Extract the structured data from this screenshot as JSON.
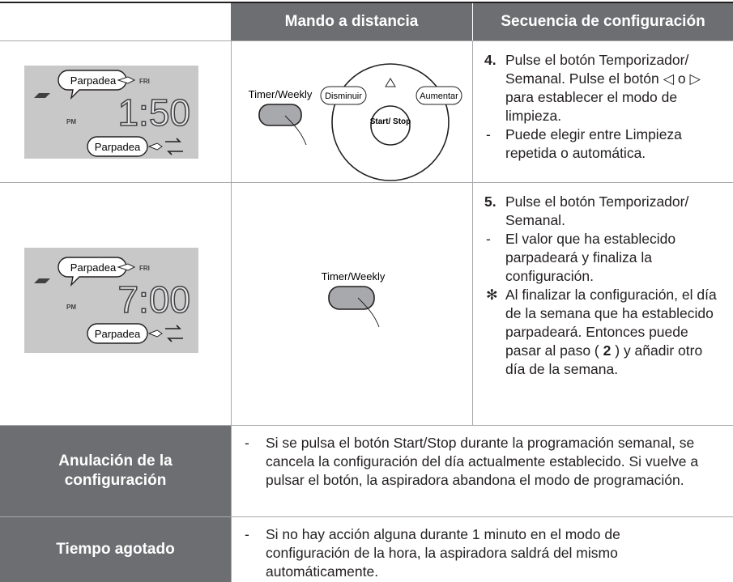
{
  "table": {
    "header": {
      "remote": "Mando a distancia",
      "sequence": "Secuencia de configuración"
    },
    "steps": [
      {
        "display": {
          "blink_top": "Parpadea",
          "day": "FRI",
          "meridiem": "PM",
          "time": "1:50",
          "blink_bottom": "Parpadea"
        },
        "remote": {
          "timer_button": "Timer/Weekly",
          "decrease": "Disminuir",
          "increase": "Aumentar",
          "start_stop": "Start/ Stop"
        },
        "instructions": [
          {
            "marker": "4.",
            "text": "Pulse el botón Temporizador/ Semanal. Pulse el botón ◁ o ▷ para establecer el modo de limpieza."
          },
          {
            "marker": "-",
            "text": "Puede elegir entre Limpieza repetida o automática."
          }
        ]
      },
      {
        "display": {
          "blink_top": "Parpadea",
          "day": "FRI",
          "meridiem": "PM",
          "time": "7:00",
          "blink_bottom": "Parpadea"
        },
        "remote": {
          "timer_button": "Timer/Weekly"
        },
        "instructions": [
          {
            "marker": "5.",
            "text": "Pulse el botón Temporizador/ Semanal."
          },
          {
            "marker": "-",
            "text": "El valor que ha establecido parpadeará y finaliza la configuración."
          },
          {
            "marker": "✻",
            "text": "Al finalizar la configuración, el día de la semana que ha establecido parpadeará. Entonces puede pasar al paso (",
            "bold": "2",
            "text_after": ") y añadir otro día de la semana."
          }
        ]
      }
    ],
    "notes": [
      {
        "label": "Anulación de la configuración",
        "marker": "-",
        "text": "Si se pulsa el botón Start/Stop durante la programación semanal, se cancela la configuración del día actualmente establecido. Si vuelve a pulsar el botón, la aspiradora abandona el modo de programación."
      },
      {
        "label": "Tiempo agotado",
        "marker": "-",
        "text": "Si no hay acción alguna durante 1 minuto en el modo de configuración de la hora, la aspiradora saldrá del mismo automáticamente."
      }
    ]
  }
}
